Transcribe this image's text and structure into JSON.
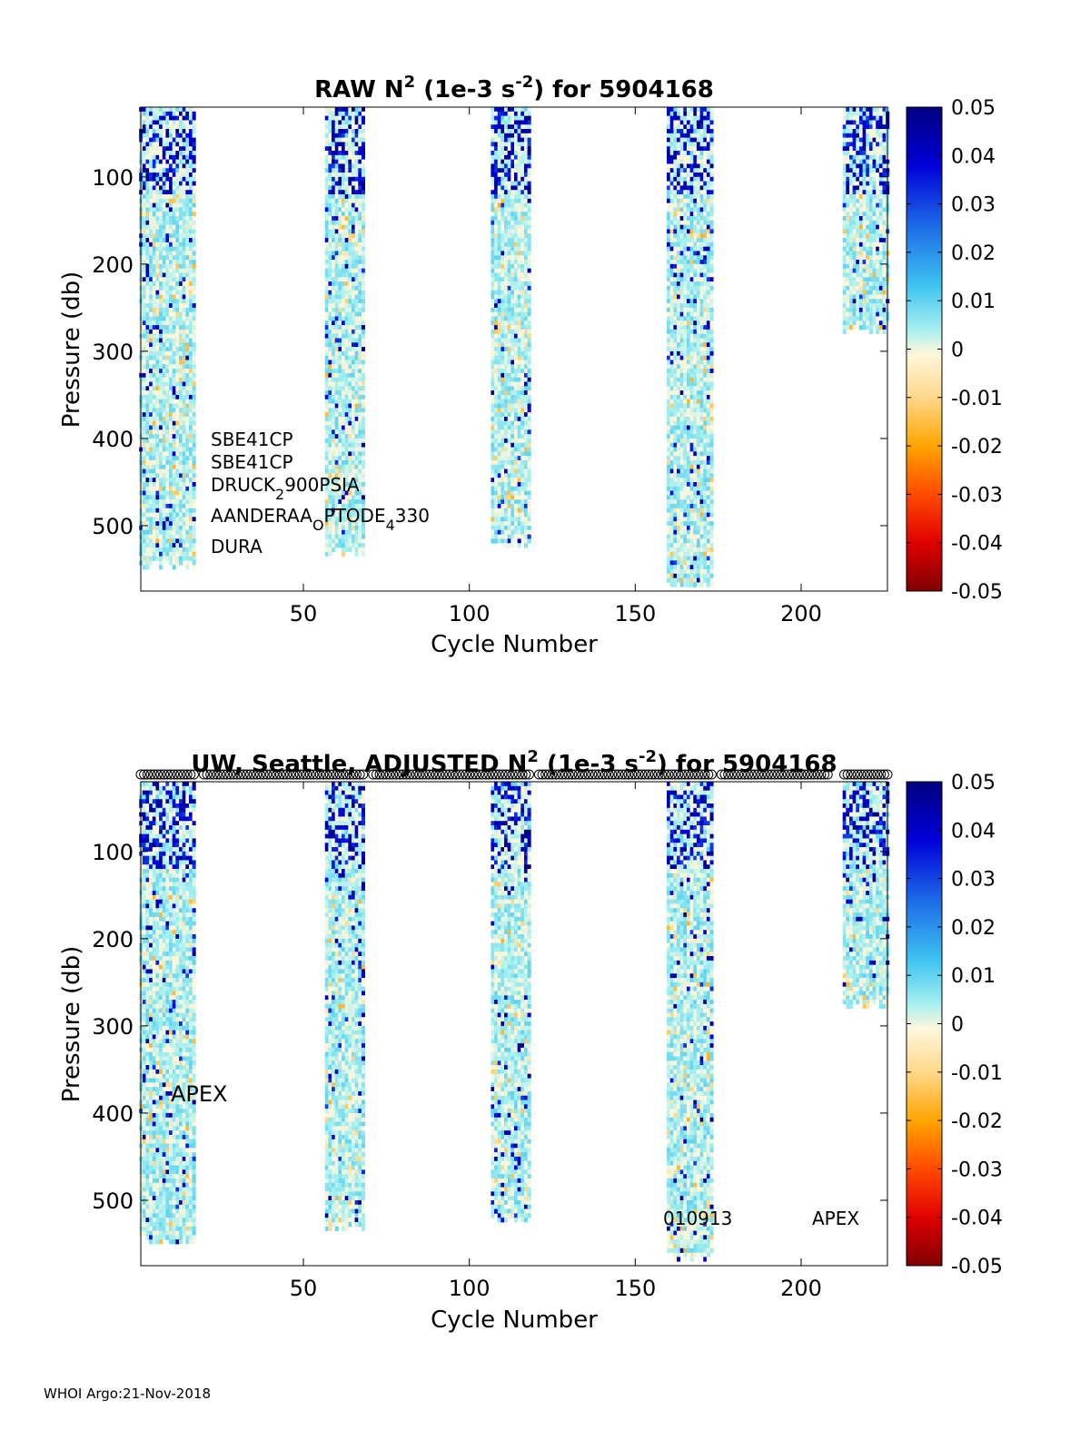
{
  "footer": "WHOI Argo:21-Nov-2018",
  "colorbar": {
    "ticks": [
      "0.05",
      "0.04",
      "0.03",
      "0.02",
      "0.01",
      "0",
      "-0.01",
      "-0.02",
      "-0.03",
      "-0.04",
      "-0.05"
    ],
    "range": [
      -0.05,
      0.05
    ],
    "colormap": "jet-like: dark red (-0.05) → orange → cream (0) → cyan → blue → navy (0.05)"
  },
  "chart_data": [
    {
      "type": "heatmap",
      "title": {
        "pre": "RAW N",
        "sup1": "2",
        "mid": " (1e-3 s",
        "sup2": "-2",
        "post": ") for 5904168"
      },
      "xlabel": "Cycle Number",
      "ylabel": "Pressure (db)",
      "xlim": [
        1,
        226
      ],
      "ylim": [
        20,
        575
      ],
      "yreversed": true,
      "xticks": [
        "50",
        "100",
        "150",
        "200"
      ],
      "yticks": [
        "100",
        "200",
        "300",
        "400",
        "500"
      ],
      "cycle_groups": [
        {
          "x_start": 1,
          "x_end": 17,
          "max_pressure": 550
        },
        {
          "x_start": 57,
          "x_end": 68,
          "max_pressure": 535
        },
        {
          "x_start": 107,
          "x_end": 118,
          "max_pressure": 525
        },
        {
          "x_start": 160,
          "x_end": 173,
          "max_pressure": 570
        },
        {
          "x_start": 213,
          "x_end": 226,
          "max_pressure": 280
        }
      ],
      "annotations": [
        {
          "text": "SBE41CP"
        },
        {
          "text": "SBE41CP"
        },
        {
          "text": "DRUCK",
          "sub": "2",
          "tail": "900PSIA"
        },
        {
          "text": "AANDERAA",
          "sub": "O",
          "tail": "PTODE",
          "sub2": "4",
          "tail2": "330"
        },
        {
          "text": "DURA"
        }
      ]
    },
    {
      "type": "heatmap",
      "title": {
        "pre": "UW, Seattle, ADJUSTED N",
        "sup1": "2",
        "mid": " (1e-3 s",
        "sup2": "-2",
        "post": ") for 5904168"
      },
      "xlabel": "Cycle Number",
      "ylabel": "Pressure (db)",
      "xlim": [
        1,
        226
      ],
      "ylim": [
        20,
        575
      ],
      "yreversed": true,
      "xticks": [
        "50",
        "100",
        "150",
        "200"
      ],
      "yticks": [
        "100",
        "200",
        "300",
        "400",
        "500"
      ],
      "cycle_groups": [
        {
          "x_start": 1,
          "x_end": 17,
          "max_pressure": 550
        },
        {
          "x_start": 57,
          "x_end": 68,
          "max_pressure": 535
        },
        {
          "x_start": 107,
          "x_end": 118,
          "max_pressure": 525
        },
        {
          "x_start": 160,
          "x_end": 173,
          "max_pressure": 570
        },
        {
          "x_start": 213,
          "x_end": 226,
          "max_pressure": 280
        }
      ],
      "marker_row": "circles at top for each profile cycle",
      "annotations": [
        {
          "text": "APEX"
        },
        {
          "text": "010913"
        },
        {
          "text": "APEX"
        }
      ]
    }
  ]
}
